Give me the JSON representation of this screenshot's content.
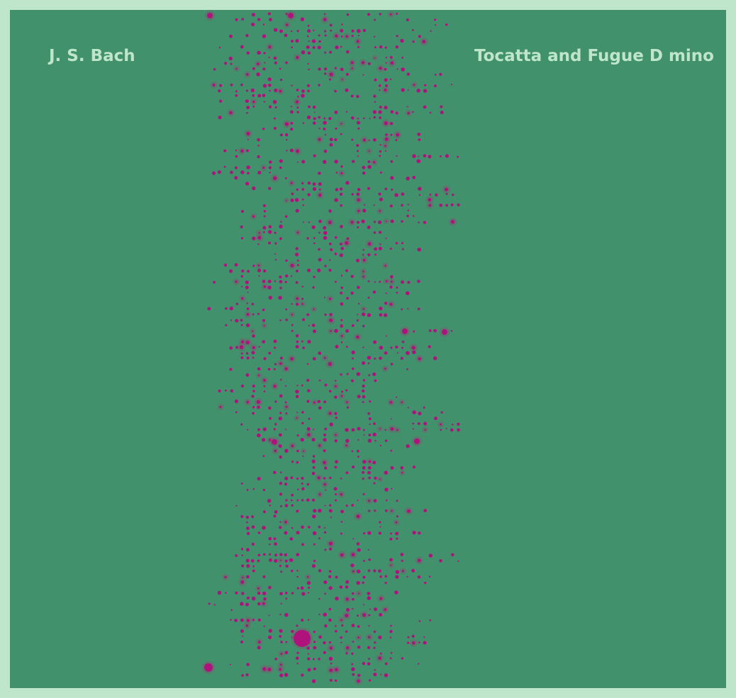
{
  "artwork": {
    "composer": "J. S. Bach",
    "title": "Tocatta and Fugue D mino",
    "colors": {
      "frame": "#bfe6cb",
      "background": "#42916d",
      "note": "#b0127d",
      "halo": "#7a5a6d",
      "label": "#bfe6cb"
    }
  }
}
